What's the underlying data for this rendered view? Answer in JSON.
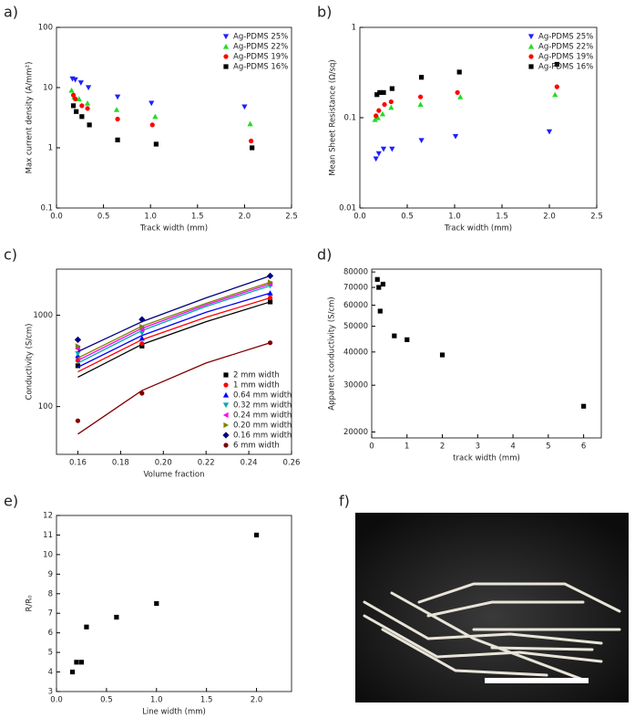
{
  "chart_data": [
    {
      "type": "scatter",
      "label": "a)",
      "xlabel": "Track width (mm)",
      "ylabel": "Max current density (A/mm²)",
      "ylog": true,
      "xlim": [
        0,
        2.5
      ],
      "xticks": [
        {
          "value": 0,
          "label": "0.0"
        },
        0.5,
        {
          "value": 1,
          "label": "1.0"
        },
        1.5,
        {
          "value": 2,
          "label": "2.0"
        },
        2.5
      ],
      "ylim": [
        0.1,
        100
      ],
      "yticks": [
        0.1,
        1,
        10,
        100
      ],
      "legend": "top-right",
      "series": [
        {
          "name": "Ag-PDMS 25%",
          "color": "#1f1fff",
          "marker": "triangle-down",
          "x": [
            0.17,
            0.2,
            0.26,
            0.34,
            0.65,
            1.01,
            2.0
          ],
          "values": [
            14,
            13.5,
            12,
            10,
            7,
            5.5,
            4.8
          ]
        },
        {
          "name": "Ag-PDMS 22%",
          "color": "#22dd22",
          "marker": "triangle-up",
          "x": [
            0.16,
            0.19,
            0.24,
            0.33,
            0.64,
            1.05,
            2.06
          ],
          "values": [
            9,
            7,
            6.5,
            5.5,
            4.3,
            3.3,
            2.5
          ]
        },
        {
          "name": "Ag-PDMS 19%",
          "color": "#ff0000",
          "marker": "circle",
          "x": [
            0.18,
            0.2,
            0.27,
            0.33,
            0.65,
            1.02,
            2.07
          ],
          "values": [
            7.5,
            6.5,
            5,
            4.5,
            3,
            2.4,
            1.3
          ]
        },
        {
          "name": "Ag-PDMS 16%",
          "color": "#000000",
          "marker": "square",
          "x": [
            0.18,
            0.21,
            0.27,
            0.35,
            0.65,
            1.06,
            2.08
          ],
          "values": [
            5,
            4,
            3.3,
            2.4,
            1.35,
            1.15,
            1.0
          ]
        }
      ]
    },
    {
      "type": "scatter",
      "label": "b)",
      "xlabel": "Track width (mm)",
      "ylabel": "Mean Sheet Resistance (Ω/sq)",
      "ylog": true,
      "xlim": [
        0,
        2.5
      ],
      "xticks": [
        {
          "value": 0,
          "label": "0.0"
        },
        0.5,
        {
          "value": 1,
          "label": "1.0"
        },
        1.5,
        {
          "value": 2,
          "label": "2.0"
        },
        2.5
      ],
      "ylim": [
        0.01,
        1
      ],
      "yticks": [
        0.01,
        0.1,
        1
      ],
      "legend": "top-right",
      "series": [
        {
          "name": "Ag-PDMS 25%",
          "color": "#1f1fff",
          "marker": "triangle-down",
          "x": [
            0.17,
            0.2,
            0.25,
            0.34,
            0.65,
            1.01,
            2.0
          ],
          "values": [
            0.035,
            0.04,
            0.045,
            0.045,
            0.056,
            0.062,
            0.07
          ]
        },
        {
          "name": "Ag-PDMS 22%",
          "color": "#22dd22",
          "marker": "triangle-up",
          "x": [
            0.16,
            0.19,
            0.24,
            0.33,
            0.64,
            1.06,
            2.06
          ],
          "values": [
            0.095,
            0.1,
            0.11,
            0.13,
            0.14,
            0.17,
            0.18
          ]
        },
        {
          "name": "Ag-PDMS 19%",
          "color": "#ff0000",
          "marker": "circle",
          "x": [
            0.17,
            0.2,
            0.26,
            0.33,
            0.64,
            1.03,
            2.08
          ],
          "values": [
            0.105,
            0.12,
            0.14,
            0.15,
            0.17,
            0.19,
            0.22
          ]
        },
        {
          "name": "Ag-PDMS 16%",
          "color": "#000000",
          "marker": "square",
          "x": [
            0.18,
            0.21,
            0.25,
            0.34,
            0.65,
            1.05,
            2.08
          ],
          "values": [
            0.18,
            0.19,
            0.19,
            0.21,
            0.28,
            0.32,
            0.39
          ]
        }
      ]
    },
    {
      "type": "scatter",
      "label": "c)",
      "xlabel": "Volume fraction",
      "ylabel": "Conductivity (S/cm)",
      "ylog": true,
      "xlim": [
        0.15,
        0.26
      ],
      "xticks": [
        0.16,
        0.18,
        {
          "value": 0.2,
          "label": "0.20"
        },
        0.22,
        0.24,
        0.26
      ],
      "ylim": [
        30,
        3200
      ],
      "yticks": [
        100,
        1000
      ],
      "legend": "bottom-right",
      "fit_x": [
        0.16,
        0.19,
        0.22,
        0.25
      ],
      "series": [
        {
          "name": "2 mm width",
          "color": "#000000",
          "marker": "square",
          "x": [
            0.16,
            0.19,
            0.25
          ],
          "values": [
            280,
            460,
            1400
          ],
          "fit": [
            210,
            480,
            850,
            1400
          ]
        },
        {
          "name": "1 mm width",
          "color": "#ff0000",
          "marker": "circle",
          "x": [
            0.16,
            0.19,
            0.25
          ],
          "values": [
            320,
            490,
            1550
          ],
          "fit": [
            240,
            540,
            950,
            1550
          ]
        },
        {
          "name": "0.64 mm width",
          "color": "#0000ff",
          "marker": "triangle-up",
          "x": [
            0.16,
            0.19,
            0.25
          ],
          "values": [
            360,
            560,
            1750
          ],
          "fit": [
            270,
            600,
            1080,
            1750
          ]
        },
        {
          "name": "0.32 mm width",
          "color": "#00aaaa",
          "marker": "triangle-down",
          "x": [
            0.16,
            0.19,
            0.25
          ],
          "values": [
            380,
            640,
            2100
          ],
          "fit": [
            300,
            680,
            1250,
            2100
          ]
        },
        {
          "name": "0.24 mm width",
          "color": "#ff00ff",
          "marker": "triangle-left",
          "x": [
            0.16,
            0.19,
            0.25
          ],
          "values": [
            430,
            700,
            2200
          ],
          "fit": [
            320,
            720,
            1300,
            2200
          ]
        },
        {
          "name": "0.20 mm width",
          "color": "#808000",
          "marker": "triangle-right",
          "x": [
            0.16,
            0.19,
            0.25
          ],
          "values": [
            460,
            750,
            2300
          ],
          "fit": [
            340,
            760,
            1350,
            2300
          ]
        },
        {
          "name": "0.16 mm width",
          "color": "#000080",
          "marker": "diamond",
          "x": [
            0.16,
            0.19,
            0.25
          ],
          "values": [
            540,
            900,
            2700
          ],
          "fit": [
            400,
            850,
            1550,
            2700
          ]
        },
        {
          "name": "6 mm width",
          "color": "#800000",
          "marker": "circle",
          "x": [
            0.16,
            0.19,
            0.25
          ],
          "values": [
            70,
            140,
            500
          ],
          "fit": [
            50,
            150,
            300,
            500
          ]
        }
      ]
    },
    {
      "type": "scatter",
      "label": "d)",
      "xlabel": "track width (mm)",
      "ylabel": "Apparent conductivity (S/cm)",
      "ylog": true,
      "xlim": [
        0,
        6.5
      ],
      "xticks": [
        0,
        1,
        2,
        3,
        4,
        5,
        6
      ],
      "ylim": [
        19000,
        82000
      ],
      "yticks": [
        20000,
        30000,
        40000,
        50000,
        60000,
        70000,
        80000
      ],
      "series": [
        {
          "color": "#000000",
          "marker": "square",
          "x": [
            0.16,
            0.2,
            0.24,
            0.32,
            0.64,
            1.0,
            2.0,
            6.0
          ],
          "values": [
            75000,
            70000,
            57000,
            72000,
            46000,
            44500,
            39000,
            25000
          ]
        }
      ]
    },
    {
      "type": "scatter",
      "label": "e)",
      "xlabel": "Line width (mm)",
      "ylabel": "R/R₀",
      "ylog": false,
      "xlim": [
        0,
        2.35
      ],
      "xticks": [
        {
          "value": 0,
          "label": "0.0"
        },
        0.5,
        {
          "value": 1,
          "label": "1.0"
        },
        1.5,
        {
          "value": 2,
          "label": "2.0"
        }
      ],
      "ylim": [
        3,
        12
      ],
      "yticks": [
        3,
        4,
        5,
        6,
        7,
        8,
        9,
        10,
        11,
        12
      ],
      "series": [
        {
          "color": "#000000",
          "marker": "square",
          "x": [
            0.16,
            0.2,
            0.25,
            0.3,
            0.6,
            1.0,
            2.0
          ],
          "values": [
            4,
            4.5,
            4.5,
            6.3,
            6.8,
            7.5,
            11
          ]
        }
      ]
    }
  ],
  "photo": {
    "label": "f)"
  }
}
